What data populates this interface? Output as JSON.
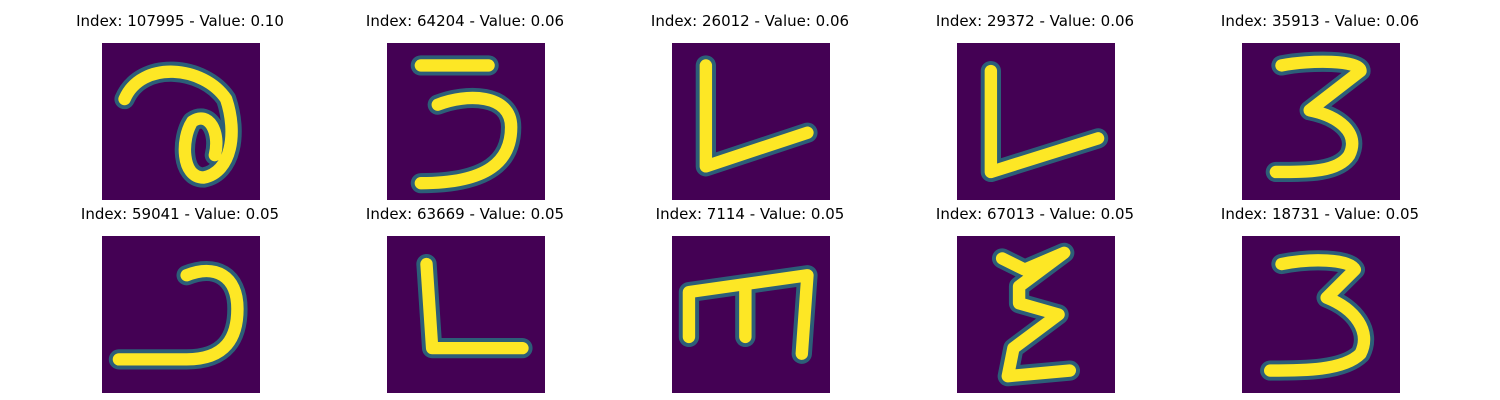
{
  "colormap": {
    "background": "#440154",
    "mid": "#21918c",
    "high": "#fde725"
  },
  "panels": [
    {
      "index": "107995",
      "value": "0.10",
      "title": "Index: 107995 - Value: 0.10",
      "glyph": "loop-a"
    },
    {
      "index": "64204",
      "value": "0.06",
      "title": "Index: 64204 - Value: 0.06",
      "glyph": "three"
    },
    {
      "index": "26012",
      "value": "0.06",
      "title": "Index: 26012 - Value: 0.06",
      "glyph": "v-shape"
    },
    {
      "index": "29372",
      "value": "0.06",
      "title": "Index: 29372 - Value: 0.06",
      "glyph": "l-shape"
    },
    {
      "index": "35913",
      "value": "0.06",
      "title": "Index: 35913 - Value: 0.06",
      "glyph": "three"
    },
    {
      "index": "59041",
      "value": "0.05",
      "title": "Index: 59041 - Value: 0.05",
      "glyph": "hook"
    },
    {
      "index": "63669",
      "value": "0.05",
      "title": "Index: 63669 - Value: 0.05",
      "glyph": "l-shape"
    },
    {
      "index": "7114",
      "value": "0.05",
      "title": "Index: 7114 - Value: 0.05",
      "glyph": "m-shape"
    },
    {
      "index": "67013",
      "value": "0.05",
      "title": "Index: 67013 - Value: 0.05",
      "glyph": "zigzag"
    },
    {
      "index": "18731",
      "value": "0.05",
      "title": "Index: 18731 - Value: 0.05",
      "glyph": "three"
    }
  ]
}
